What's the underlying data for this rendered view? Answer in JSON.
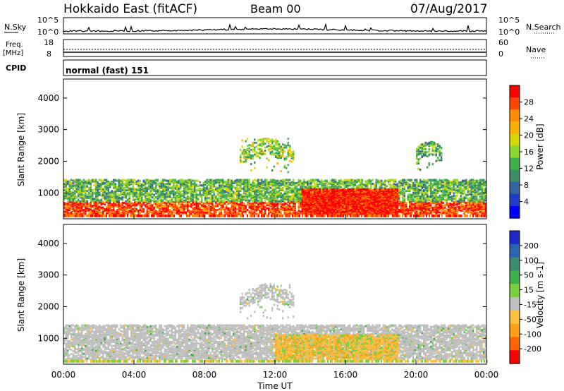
{
  "header": {
    "station": "Hokkaido East (fitACF)",
    "beam": "Beam 00",
    "date": "07/Aug/2017"
  },
  "top_panel": {
    "nsky_label": "N.Sky",
    "nsearch_label": "N.Search",
    "nave_label": "Nave",
    "left_ticks": [
      "10^5",
      "10^0"
    ],
    "right_ticks": [
      "10^5",
      "10^0"
    ],
    "freq_label_1": "Freq.",
    "freq_label_2": "[MHz]",
    "freq_ticks": [
      "18",
      "8"
    ],
    "nave_ticks": [
      "60",
      "0"
    ],
    "cpid_label": "CPID",
    "cpid_text": "normal (fast) 151"
  },
  "chart_data": [
    {
      "type": "heatmap",
      "title": "",
      "ylabel": "Slant Range [km]",
      "xlabel": "",
      "x_range_hours": [
        0,
        24
      ],
      "ylim": [
        180,
        4600
      ],
      "y_ticks": [
        1000,
        2000,
        3000,
        4000
      ],
      "x_ticks": [
        "00:00",
        "04:00",
        "08:00",
        "12:00",
        "16:00",
        "20:00",
        "00:00"
      ],
      "colorbar": {
        "label": "Power [dB]",
        "tick_labels": [
          "28",
          "24",
          "20",
          "16",
          "12",
          "8",
          "4"
        ],
        "colors": [
          "#ff0000",
          "#ff4500",
          "#ff8c00",
          "#ffb000",
          "#d6d600",
          "#8ad82e",
          "#3cb04a",
          "#3c8c64",
          "#3264a0",
          "#1e3cc8",
          "#0000ff"
        ]
      },
      "bands": [
        {
          "name": "near-range red band",
          "range_km": [
            300,
            700
          ],
          "x_hours": [
            0,
            24
          ],
          "level_db": 26
        },
        {
          "name": "mid-range mixed echo",
          "range_km": [
            700,
            1400
          ],
          "x_hours": [
            0,
            24
          ],
          "level_db": 14
        },
        {
          "name": "strong afternoon patch",
          "range_km": [
            300,
            1100
          ],
          "x_hours": [
            13.5,
            19
          ],
          "level_db": 28
        },
        {
          "name": "arc echo",
          "range_km": [
            1600,
            2700
          ],
          "x_hours": [
            10,
            13
          ],
          "level_db": 16
        },
        {
          "name": "evening arc",
          "range_km": [
            1700,
            2600
          ],
          "x_hours": [
            20,
            21.5
          ],
          "level_db": 14
        }
      ]
    },
    {
      "type": "heatmap",
      "title": "",
      "ylabel": "Slant Range [km]",
      "xlabel": "Time UT",
      "x_range_hours": [
        0,
        24
      ],
      "ylim": [
        180,
        4600
      ],
      "y_ticks": [
        1000,
        2000,
        3000,
        4000
      ],
      "x_ticks": [
        "00:00",
        "04:00",
        "08:00",
        "12:00",
        "16:00",
        "20:00",
        "00:00"
      ],
      "colorbar": {
        "label": "Velocity [m s-1]",
        "tick_labels": [
          "200",
          "100",
          "50",
          "15",
          "-15",
          "-50",
          "-100",
          "-200"
        ],
        "colors": [
          "#1e28c8",
          "#2a64b4",
          "#3c8c6e",
          "#3cb04a",
          "#78d03c",
          "#bebebe",
          "#ffbe3c",
          "#ffa014",
          "#ff6400",
          "#ff0000"
        ]
      },
      "bands": [
        {
          "name": "ground scatter",
          "range_km": [
            300,
            1400
          ],
          "x_hours": [
            0,
            24
          ],
          "velocity_ms": 0
        },
        {
          "name": "afternoon negative velocity",
          "range_km": [
            300,
            1100
          ],
          "x_hours": [
            12,
            19
          ],
          "velocity_ms": -50
        },
        {
          "name": "arc echo",
          "range_km": [
            1600,
            2700
          ],
          "x_hours": [
            10,
            13
          ],
          "velocity_ms": 0
        }
      ]
    }
  ]
}
